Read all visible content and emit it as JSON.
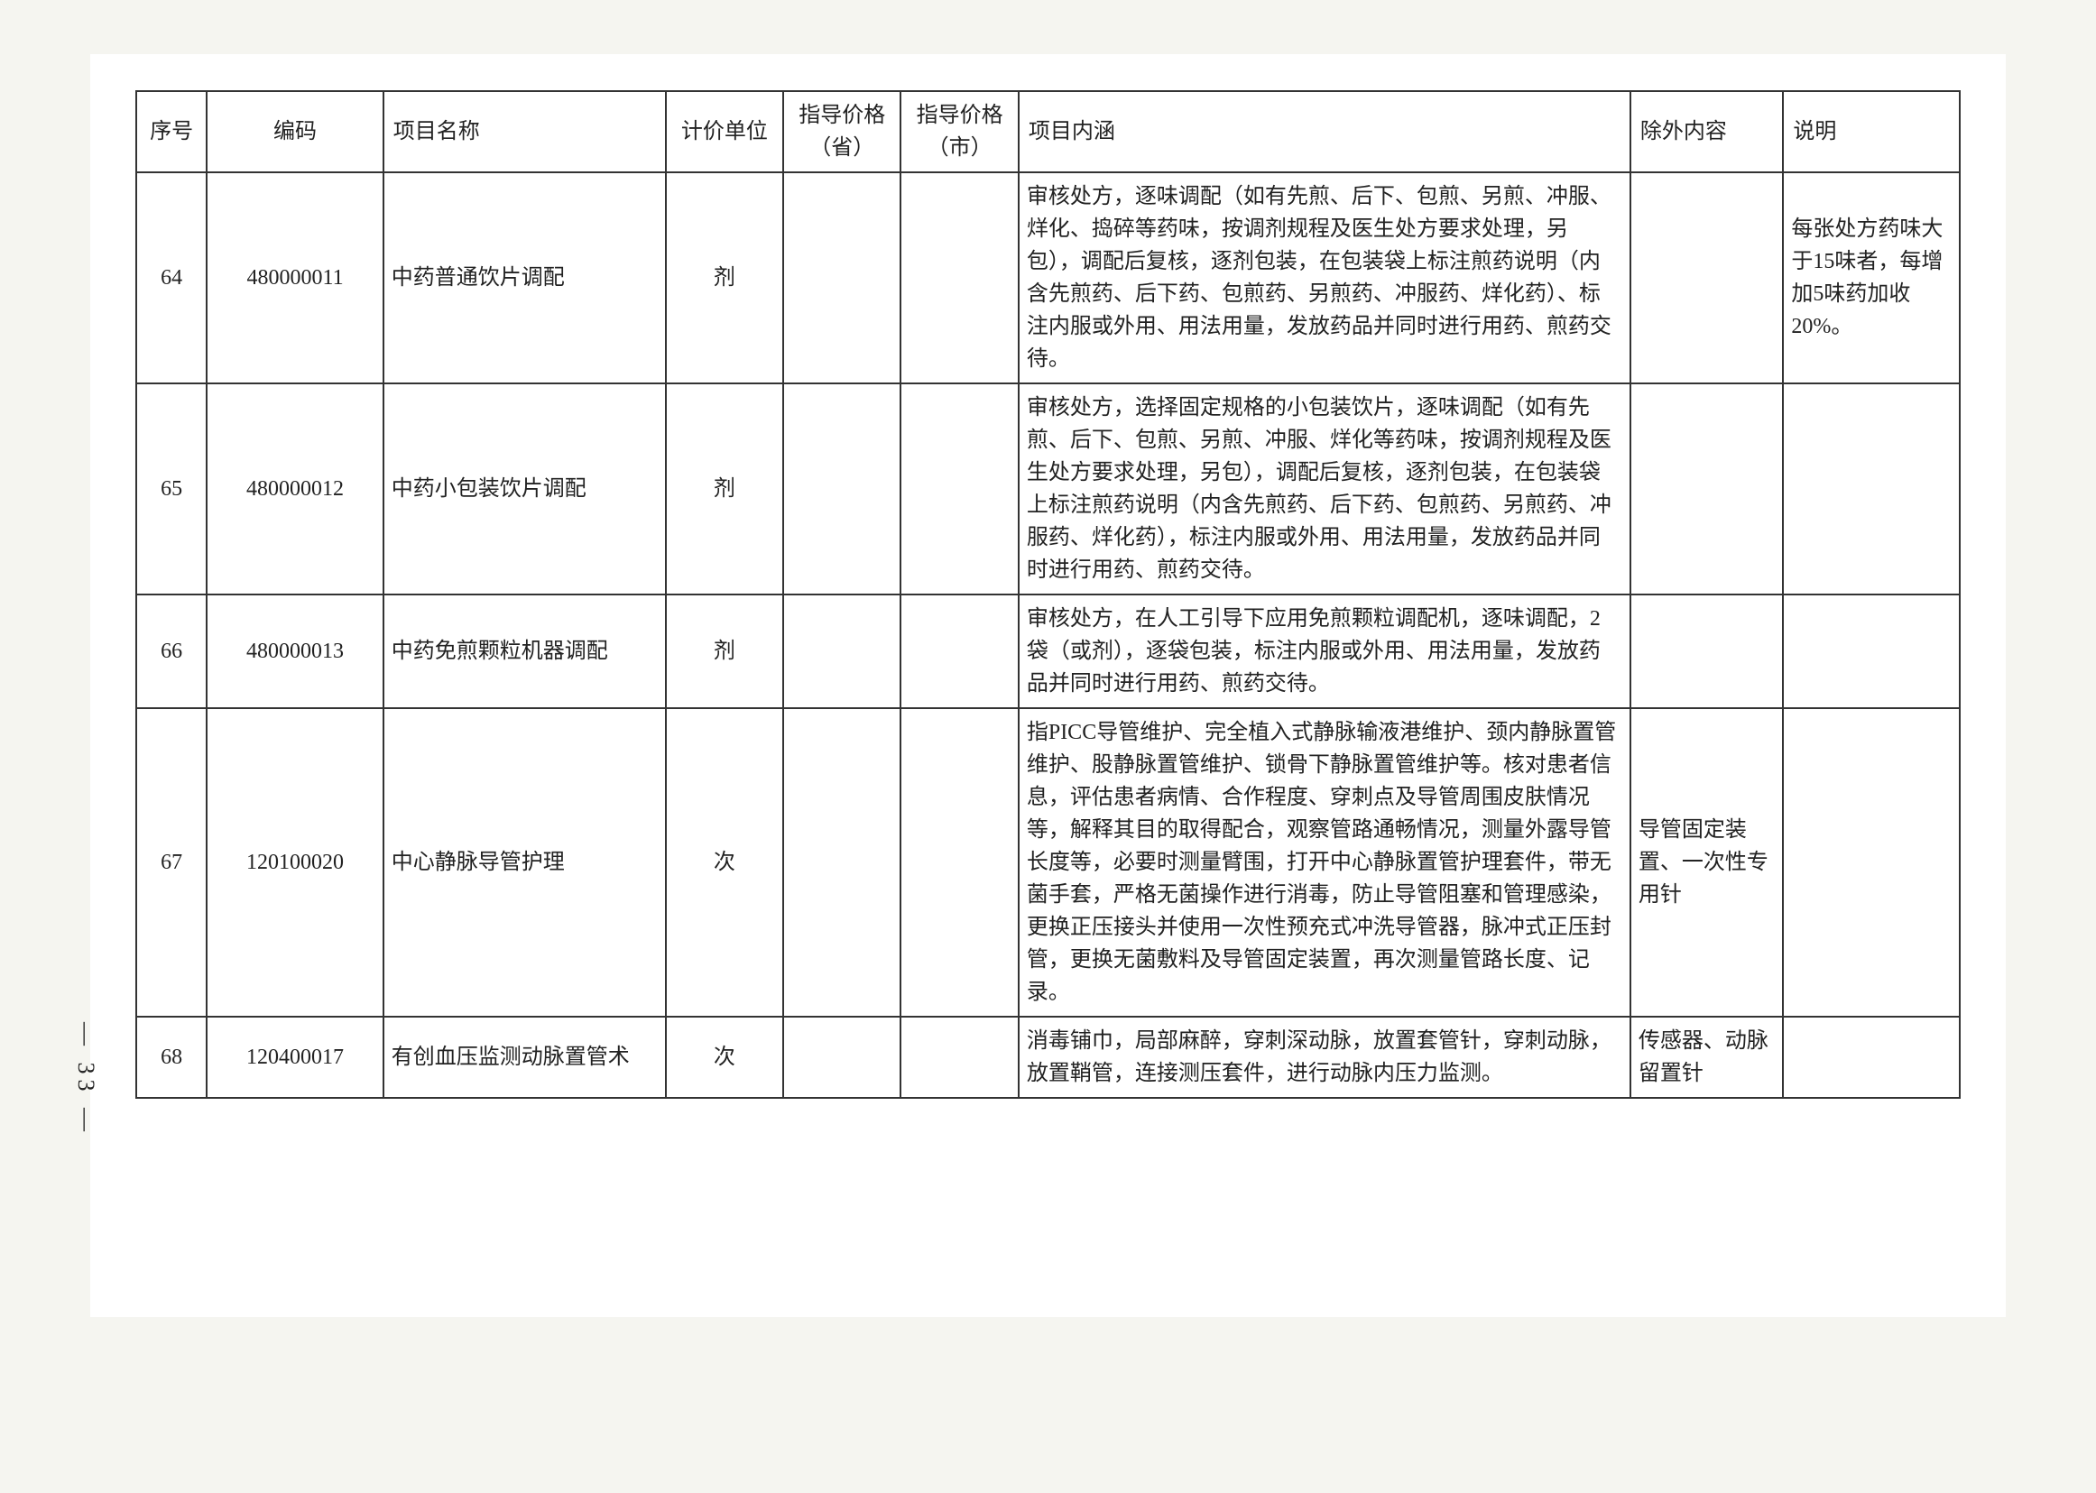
{
  "page_number": "— 33 —",
  "table": {
    "columns": [
      "序号",
      "编码",
      "项目名称",
      "计价单位",
      "指导价格（省）",
      "指导价格（市）",
      "项目内涵",
      "除外内容",
      "说明"
    ],
    "rows": [
      {
        "seq": "64",
        "code": "480000011",
        "name": "中药普通饮片调配",
        "unit": "剂",
        "price1": "",
        "price2": "",
        "desc": "审核处方，逐味调配（如有先煎、后下、包煎、另煎、冲服、烊化、捣碎等药味，按调剂规程及医生处方要求处理，另包），调配后复核，逐剂包装，在包装袋上标注煎药说明（内含先煎药、后下药、包煎药、另煎药、冲服药、烊化药）、标注内服或外用、用法用量，发放药品并同时进行用药、煎药交待。",
        "excl": "",
        "note": "每张处方药味大于15味者，每增加5味药加收20%。"
      },
      {
        "seq": "65",
        "code": "480000012",
        "name": "中药小包装饮片调配",
        "unit": "剂",
        "price1": "",
        "price2": "",
        "desc": "审核处方，选择固定规格的小包装饮片，逐味调配（如有先煎、后下、包煎、另煎、冲服、烊化等药味，按调剂规程及医生处方要求处理，另包），调配后复核，逐剂包装，在包装袋上标注煎药说明（内含先煎药、后下药、包煎药、另煎药、冲服药、烊化药），标注内服或外用、用法用量，发放药品并同时进行用药、煎药交待。",
        "excl": "",
        "note": ""
      },
      {
        "seq": "66",
        "code": "480000013",
        "name": "中药免煎颗粒机器调配",
        "unit": "剂",
        "price1": "",
        "price2": "",
        "desc": "审核处方，在人工引导下应用免煎颗粒调配机，逐味调配，2袋（或剂），逐袋包装，标注内服或外用、用法用量，发放药品并同时进行用药、煎药交待。",
        "excl": "",
        "note": ""
      },
      {
        "seq": "67",
        "code": "120100020",
        "name": "中心静脉导管护理",
        "unit": "次",
        "price1": "",
        "price2": "",
        "desc": "指PICC导管维护、完全植入式静脉输液港维护、颈内静脉置管维护、股静脉置管维护、锁骨下静脉置管维护等。核对患者信息，评估患者病情、合作程度、穿刺点及导管周围皮肤情况等，解释其目的取得配合，观察管路通畅情况，测量外露导管长度等，必要时测量臂围，打开中心静脉置管护理套件，带无菌手套，严格无菌操作进行消毒，防止导管阻塞和管理感染，更换正压接头并使用一次性预充式冲洗导管器，脉冲式正压封管，更换无菌敷料及导管固定装置，再次测量管路长度、记录。",
        "excl": "导管固定装置、一次性专用针",
        "note": ""
      },
      {
        "seq": "68",
        "code": "120400017",
        "name": "有创血压监测动脉置管术",
        "unit": "次",
        "price1": "",
        "price2": "",
        "desc": "消毒铺巾，局部麻醉，穿刺深动脉，放置套管针，穿刺动脉，放置鞘管，连接测压套件，进行动脉内压力监测。",
        "excl": "传感器、动脉留置针",
        "note": ""
      }
    ]
  },
  "styling": {
    "border_color": "#333333",
    "text_color": "#222222",
    "background_color": "#ffffff",
    "page_background": "#f5f5f0",
    "font_family": "SimSun",
    "header_fontsize": 24,
    "cell_fontsize": 24,
    "border_width": 2
  }
}
